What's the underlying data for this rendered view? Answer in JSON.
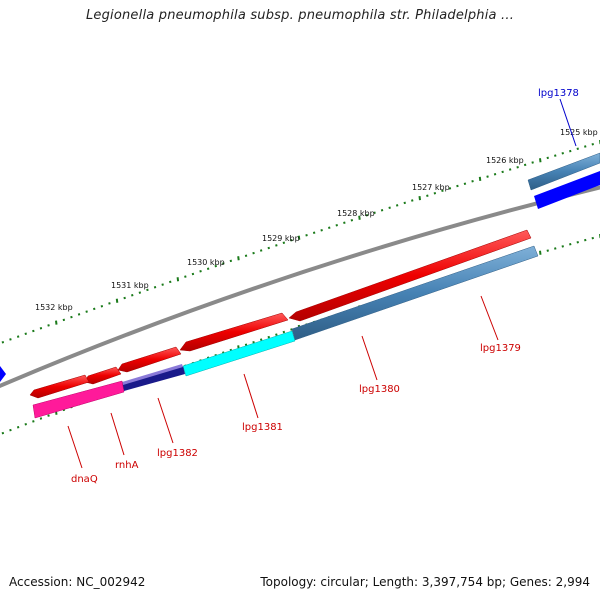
{
  "title": "Legionella pneumophila subsp. pneumophila str. Philadelphia ...",
  "footer": {
    "accession": "Accession: NC_002942",
    "summary": "Topology: circular; Length: 3,397,754 bp; Genes: 2,994"
  },
  "colors": {
    "backbone": "#808080",
    "tick": "#1a7a1a",
    "forward_gene": "#ff0000",
    "reverse_gene": "#4682b4",
    "label_forward": "#cc0000",
    "label_other": "#0000cc"
  },
  "scale_labels": [
    "1525 kbp",
    "1526 kbp",
    "1527 kbp",
    "1528 kbp",
    "1529 kbp",
    "1530 kbp",
    "1531 kbp",
    "1532 kbp"
  ],
  "genes": [
    {
      "name": "lpg1378",
      "color": "#0000cc"
    },
    {
      "name": "lpg1379",
      "color": "#cc0000"
    },
    {
      "name": "lpg1380",
      "color": "#cc0000"
    },
    {
      "name": "lpg1381",
      "color": "#cc0000"
    },
    {
      "name": "lpg1382",
      "color": "#cc0000"
    },
    {
      "name": "rnhA",
      "color": "#cc0000"
    },
    {
      "name": "dnaQ",
      "color": "#cc0000"
    }
  ]
}
